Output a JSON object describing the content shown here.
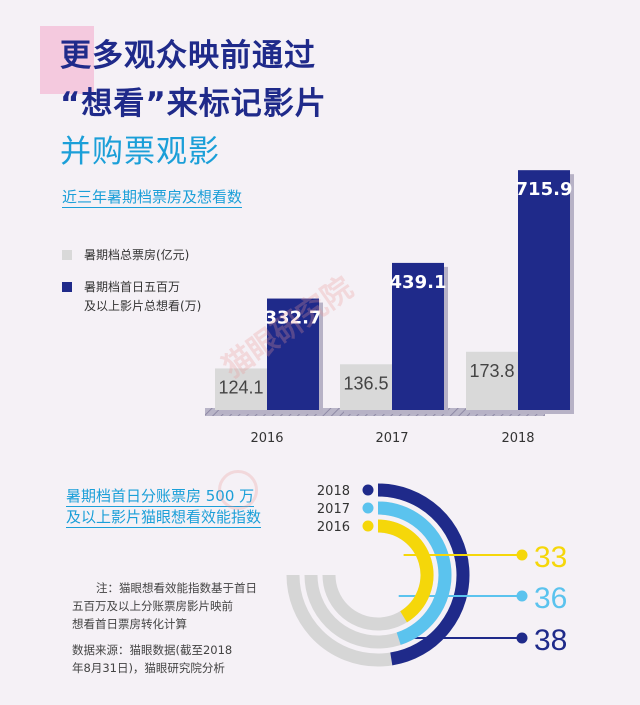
{
  "title": {
    "line1": "更多观众映前通过",
    "line2": "“想看”来标记影片",
    "line3": "并购票观影"
  },
  "section1": {
    "title": "近三年暑期档票房及想看数"
  },
  "legend": {
    "box_office": "暑期档总票房(亿元)",
    "want_line1": "暑期档首日五百万",
    "want_line2": "及以上影片总想看(万)"
  },
  "section2": {
    "title_line1": "暑期档首日分账票房 500 万",
    "title_line2": "及以上影片猫眼想看效能指数"
  },
  "notes": {
    "note_line1": "注：猫眼想看效能指数基于首日",
    "note_line2": "五百万及以上分账票房影片映前",
    "note_line3": "想看首日票房转化计算",
    "source_line1": "数据来源：猫眼数据(截至2018",
    "source_line2": "年8月31日)，猫眼研究院分析"
  },
  "watermark": "猫眼研究院",
  "colors": {
    "navy": "#1f2a8a",
    "light_gray": "#d9d9d9",
    "cyan": "#1b9fd8",
    "yellow": "#f5d70a",
    "light_blue": "#5bc3ee",
    "ring_gray": "#d6d6d6"
  },
  "chart_data": [
    {
      "type": "bar",
      "title": "近三年暑期档票房及想看数",
      "categories": [
        "2016",
        "2017",
        "2018"
      ],
      "series": [
        {
          "name": "暑期档总票房(亿元)",
          "values": [
            124.1,
            136.5,
            173.8
          ]
        },
        {
          "name": "暑期档首日五百万及以上影片总想看(万)",
          "values": [
            332.7,
            439.1,
            715.9
          ]
        }
      ],
      "ylim": [
        0,
        800
      ]
    },
    {
      "type": "pie",
      "title": "暑期档首日分账票房 500 万及以上影片猫眼想看效能指数",
      "categories": [
        "2018",
        "2017",
        "2016"
      ],
      "values": [
        38,
        36,
        33
      ]
    }
  ]
}
